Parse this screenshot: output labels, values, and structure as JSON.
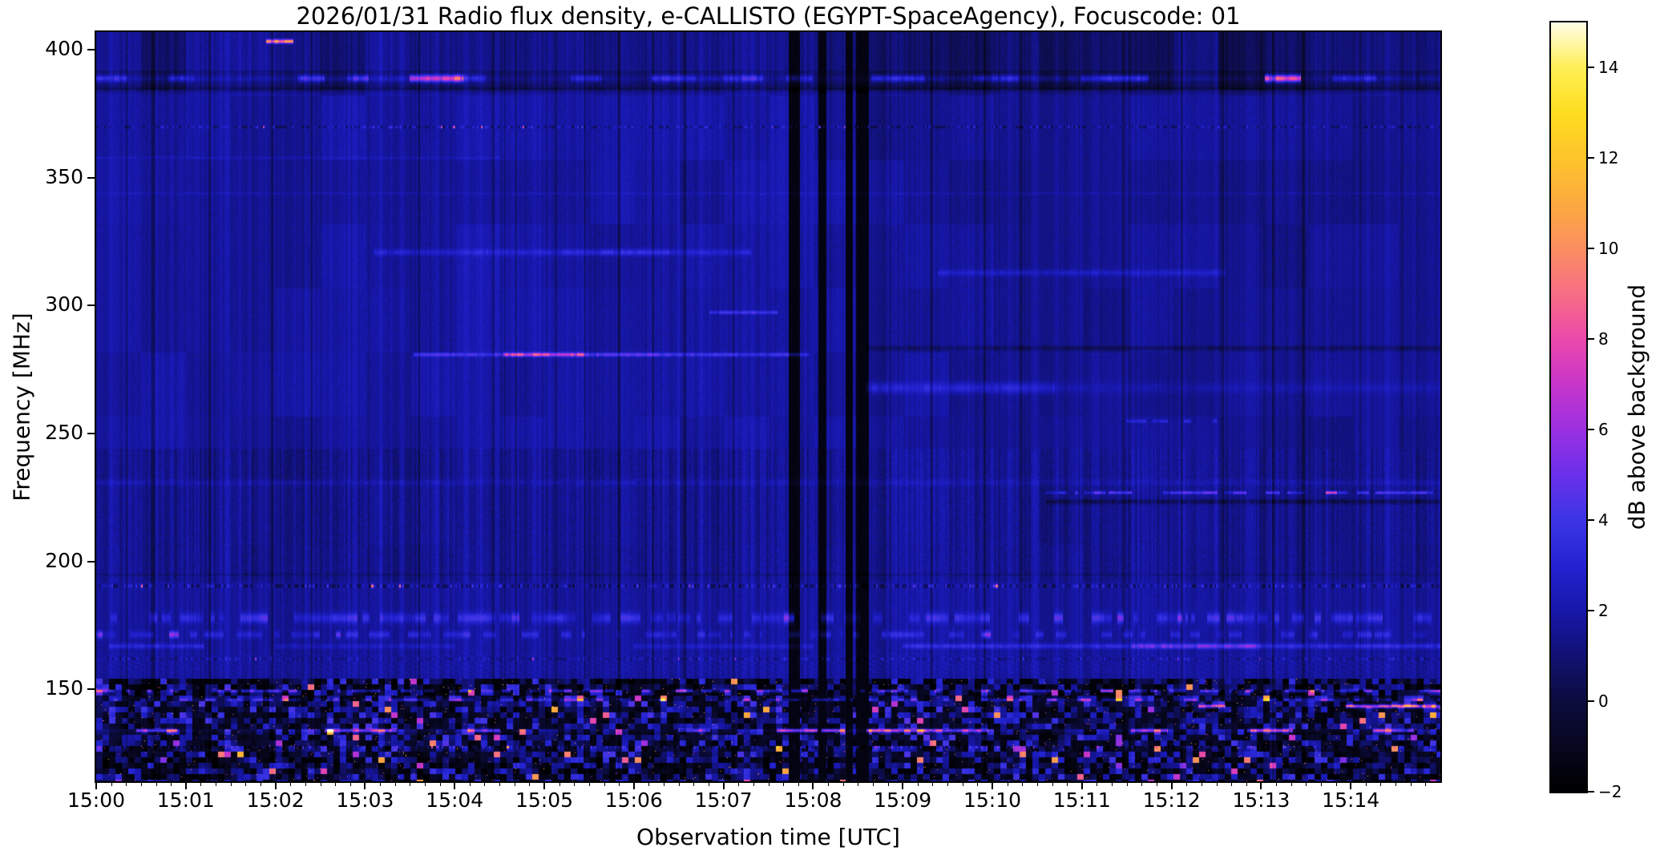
{
  "figure": {
    "title": "2026/01/31  Radio flux density, e-CALLISTO (EGYPT-SpaceAgency), Focuscode: 01",
    "xlabel": "Observation time [UTC]",
    "ylabel": "Frequency [MHz]",
    "colorbar_label": "dB above background"
  },
  "chart_data": {
    "type": "heatmap",
    "title": "2026/01/31  Radio flux density, e-CALLISTO (EGYPT-SpaceAgency), Focuscode: 01",
    "date": "2026/01/31",
    "network": "e-CALLISTO",
    "station": "EGYPT-SpaceAgency",
    "focuscode": "01",
    "xlabel": "Observation time [UTC]",
    "ylabel": "Frequency [MHz]",
    "x_tick_labels": [
      "15:00",
      "15:01",
      "15:02",
      "15:03",
      "15:04",
      "15:05",
      "15:06",
      "15:07",
      "15:08",
      "15:09",
      "15:10",
      "15:11",
      "15:12",
      "15:13",
      "15:14"
    ],
    "x_range_minutes": [
      0,
      15
    ],
    "y_tick_values_mhz": [
      400,
      350,
      300,
      250,
      200,
      150
    ],
    "y_range_mhz": [
      114,
      407
    ],
    "grid": false,
    "colorbar": {
      "label": "dB above background",
      "range_db": [
        -2,
        15
      ],
      "tick_values_db": [
        14,
        12,
        10,
        8,
        6,
        4,
        2,
        0,
        -2
      ],
      "tick_labels": [
        "14",
        "12",
        "10",
        "8",
        "6",
        "4",
        "2",
        "0",
        "−2"
      ],
      "colormap_name": "gnuplot2-like (black-blue-violet-magenta-orange-yellow-white)",
      "colormap_stops": [
        [
          -2,
          "#000000"
        ],
        [
          -1,
          "#07071f"
        ],
        [
          0,
          "#0c0c3f"
        ],
        [
          1,
          "#111173"
        ],
        [
          2,
          "#1717aa"
        ],
        [
          3,
          "#2323d2"
        ],
        [
          4,
          "#3c35e5"
        ],
        [
          5,
          "#6a30ea"
        ],
        [
          6,
          "#9b30e2"
        ],
        [
          7,
          "#c735cb"
        ],
        [
          8,
          "#eb49ac"
        ],
        [
          9,
          "#f76d85"
        ],
        [
          10,
          "#fb8e61"
        ],
        [
          11,
          "#fcaa40"
        ],
        [
          12,
          "#fdc42c"
        ],
        [
          13,
          "#fedd1f"
        ],
        [
          14,
          "#ffef55"
        ],
        [
          15,
          "#fffde6"
        ]
      ]
    },
    "background": {
      "typical_level_db": 1.9,
      "top_rows_level_db": 1.45,
      "low_freq_blocky_noise_below_mhz": 154,
      "fine_vertical_striping": true
    },
    "bands": [
      {
        "name": "top-edge-dash",
        "f_mhz": 403.5,
        "width_mhz": 1.2,
        "kind": "segments",
        "segments": [
          [
            1.9,
            2.2,
            9
          ]
        ]
      },
      {
        "name": "389-interference-band",
        "f_mhz": 389,
        "width_mhz": 2.2,
        "kind": "segments",
        "segments": [
          [
            0,
            0.35,
            2.5
          ],
          [
            0.35,
            0.8,
            0.8
          ],
          [
            0.8,
            1.1,
            2.2
          ],
          [
            1.1,
            2.25,
            0.7
          ],
          [
            2.25,
            2.55,
            3
          ],
          [
            2.55,
            2.8,
            1
          ],
          [
            2.8,
            3.05,
            3.2
          ],
          [
            3.05,
            3.5,
            1.2
          ],
          [
            3.5,
            4.1,
            7.5
          ],
          [
            4.1,
            4.35,
            2.5
          ],
          [
            4.35,
            5.3,
            0.5
          ],
          [
            5.3,
            5.65,
            2.2
          ],
          [
            5.65,
            6.2,
            0.6
          ],
          [
            6.2,
            6.7,
            2.6
          ],
          [
            6.7,
            7,
            1.2
          ],
          [
            7,
            7.45,
            2.8
          ],
          [
            7.45,
            7.7,
            0.5
          ],
          [
            7.7,
            8,
            2
          ],
          [
            8,
            8.65,
            0.4
          ],
          [
            8.65,
            9.25,
            2.6
          ],
          [
            9.25,
            9.8,
            1
          ],
          [
            9.8,
            10.3,
            2.4
          ],
          [
            10.3,
            11,
            1.2
          ],
          [
            11,
            11.75,
            3
          ],
          [
            11.75,
            13.05,
            0.6
          ],
          [
            13.05,
            13.45,
            7.2
          ],
          [
            13.45,
            13.8,
            0.5
          ],
          [
            13.8,
            14.3,
            2.4
          ],
          [
            14.3,
            15,
            0.8
          ]
        ]
      },
      {
        "name": "dark-lane-under-389",
        "f_mhz": 384.5,
        "width_mhz": 2,
        "kind": "solid",
        "t_minutes": [
          0,
          15
        ],
        "amp_db": -0.75
      },
      {
        "name": "370-speckle-row",
        "f_mhz": 370,
        "width_mhz": 0.8,
        "kind": "speckle",
        "t_minutes": [
          0,
          15
        ],
        "amp_db": 2.2,
        "dark_db": 1.3
      },
      {
        "name": "358-faint-line",
        "f_mhz": 358,
        "width_mhz": 0.8,
        "kind": "segments",
        "segments": [
          [
            0,
            4.5,
            0.5
          ]
        ]
      },
      {
        "name": "344-faint-line",
        "f_mhz": 344,
        "width_mhz": 0.8,
        "kind": "solid",
        "t_minutes": [
          0,
          15
        ],
        "amp_db": 0.45
      },
      {
        "name": "321-light-band",
        "f_mhz": 321,
        "width_mhz": 2,
        "kind": "segments",
        "segments": [
          [
            3.1,
            5.2,
            1.1
          ],
          [
            5.2,
            6.4,
            1.9
          ],
          [
            6.4,
            7.3,
            1.1
          ]
        ]
      },
      {
        "name": "313-light-band",
        "f_mhz": 313,
        "width_mhz": 2,
        "kind": "segments",
        "segments": [
          [
            9.4,
            12.6,
            1
          ]
        ]
      },
      {
        "name": "297-line",
        "f_mhz": 297.5,
        "width_mhz": 1.1,
        "kind": "segments",
        "segments": [
          [
            6.85,
            7.6,
            2.2
          ]
        ]
      },
      {
        "name": "281-bright-line",
        "f_mhz": 281,
        "width_mhz": 1.2,
        "kind": "segments",
        "segments": [
          [
            3.55,
            4.55,
            2.2
          ],
          [
            4.55,
            5.45,
            6
          ],
          [
            5.45,
            6.3,
            3
          ],
          [
            6.3,
            7.95,
            2.2
          ]
        ]
      },
      {
        "name": "283-dark-row-right",
        "f_mhz": 283.5,
        "width_mhz": 1.6,
        "kind": "segments",
        "segments": [
          [
            8.6,
            15,
            -0.9
          ]
        ]
      },
      {
        "name": "268-light-band",
        "f_mhz": 268,
        "width_mhz": 3.5,
        "kind": "segments",
        "segments": [
          [
            8.6,
            10.7,
            1.4
          ],
          [
            10.7,
            15,
            0.5
          ]
        ]
      },
      {
        "name": "255-dots",
        "f_mhz": 255,
        "width_mhz": 1,
        "kind": "dash",
        "t_minutes": [
          11.5,
          12.5
        ],
        "amp_db": 1.8
      },
      {
        "name": "231-light-band",
        "f_mhz": 231,
        "width_mhz": 2,
        "kind": "solid",
        "t_minutes": [
          0,
          15
        ],
        "amp_db": 0.5
      },
      {
        "name": "227-bright-line",
        "f_mhz": 227,
        "width_mhz": 0.9,
        "kind": "dash",
        "t_minutes": [
          10.6,
          15
        ],
        "amp_db": 2.6
      },
      {
        "name": "224-dark-row",
        "f_mhz": 223.5,
        "width_mhz": 1.5,
        "kind": "segments",
        "segments": [
          [
            10.6,
            15,
            -1.2
          ]
        ]
      },
      {
        "name": "195-dark-line",
        "f_mhz": 195,
        "width_mhz": 0.8,
        "kind": "solid",
        "t_minutes": [
          0,
          15
        ],
        "amp_db": -0.5
      },
      {
        "name": "190-speckle-row",
        "f_mhz": 190.5,
        "width_mhz": 1.1,
        "kind": "speckle",
        "t_minutes": [
          0,
          15
        ],
        "amp_db": 2.6,
        "dark_db": 1.6
      },
      {
        "name": "178-segmented-band",
        "f_mhz": 178,
        "width_mhz": 3.2,
        "kind": "dash",
        "t_minutes": [
          0,
          15
        ],
        "amp_db": 1.6
      },
      {
        "name": "172-segmented-band",
        "f_mhz": 171.5,
        "width_mhz": 2.2,
        "kind": "dash",
        "t_minutes": [
          0,
          15
        ],
        "amp_db": 1.3
      },
      {
        "name": "167-band",
        "f_mhz": 167,
        "width_mhz": 1.6,
        "kind": "segments",
        "segments": [
          [
            0.15,
            1.2,
            1.5
          ],
          [
            2,
            4,
            0.8
          ],
          [
            6,
            8,
            0.9
          ],
          [
            9,
            11.55,
            1.6
          ],
          [
            11.55,
            13,
            3.2
          ],
          [
            13,
            15,
            1.6
          ]
        ]
      },
      {
        "name": "162-speckle",
        "f_mhz": 162,
        "width_mhz": 0.9,
        "kind": "speckle",
        "t_minutes": [
          0,
          15
        ],
        "amp_db": 1.8,
        "dark_db": 0.8
      },
      {
        "name": "149-dashes",
        "f_mhz": 149.5,
        "width_mhz": 1,
        "kind": "dash",
        "t_minutes": [
          0,
          15
        ],
        "amp_db": 3.4
      },
      {
        "name": "146-dashes",
        "f_mhz": 146,
        "width_mhz": 0.9,
        "kind": "dash",
        "t_minutes": [
          0,
          15
        ],
        "amp_db": 2.4
      },
      {
        "name": "144-orange-line",
        "f_mhz": 143.5,
        "width_mhz": 1.1,
        "kind": "segments",
        "segments": [
          [
            12.3,
            12.6,
            7
          ],
          [
            13.95,
            14.55,
            9.5
          ],
          [
            14.55,
            15,
            8.5
          ]
        ]
      },
      {
        "name": "134-magenta-line",
        "f_mhz": 134,
        "width_mhz": 1.1,
        "kind": "segments",
        "segments": [
          [
            0.45,
            0.9,
            5.5
          ],
          [
            2.55,
            3.35,
            6
          ],
          [
            4.15,
            4.5,
            5
          ],
          [
            6.5,
            6.85,
            5
          ],
          [
            7.6,
            8.05,
            7
          ],
          [
            8.1,
            8.35,
            7
          ],
          [
            8.6,
            9.3,
            7.5
          ],
          [
            9.3,
            9.95,
            5.5
          ],
          [
            11.55,
            11.95,
            6
          ],
          [
            12.85,
            13.35,
            6.5
          ],
          [
            14.25,
            14.7,
            5.5
          ]
        ]
      },
      {
        "name": "134-faint-base",
        "f_mhz": 134,
        "width_mhz": 1,
        "kind": "solid",
        "t_minutes": [
          0,
          15
        ],
        "amp_db": 0.7
      },
      {
        "name": "127-speckle-row",
        "f_mhz": 127.5,
        "width_mhz": 0.9,
        "kind": "speckle",
        "t_minutes": [
          0,
          15
        ],
        "amp_db": 3.2,
        "dark_db": 1.2
      }
    ],
    "vertical_gaps_minutes": [
      [
        7.73,
        7.85
      ],
      [
        8.06,
        8.14
      ],
      [
        8.36,
        8.44
      ],
      [
        8.48,
        8.62
      ]
    ],
    "dark_columns_minutes": [
      0.33,
      0.62,
      1.25,
      1.95,
      2.4,
      3.6,
      4.42,
      4.55,
      4.68,
      5.12,
      5.45,
      5.82,
      6.2,
      6.55,
      7.1,
      9.3,
      9.9,
      10.3,
      11.45,
      12.1,
      12.55,
      13.12,
      13.45,
      14.1,
      14.55
    ],
    "diagonal_hatch": {
      "f_range_mhz": [
        156,
        164
      ],
      "t_range_minutes": [
        0,
        15
      ],
      "amp_db": 0.45
    }
  }
}
